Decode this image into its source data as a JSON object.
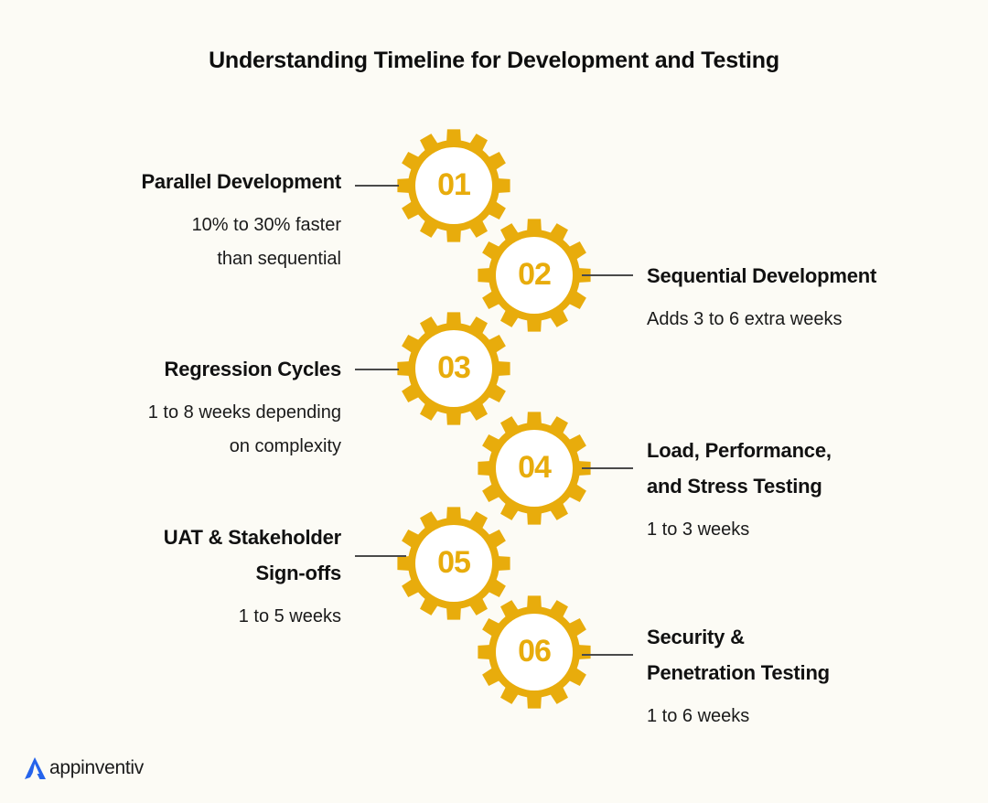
{
  "title": "Understanding Timeline for Development and Testing",
  "colors": {
    "gear": "#e8ac0c",
    "gear_inner": "#ffffff",
    "background": "#fcfbf5",
    "connector": "#4a4a4a",
    "logo_accent": "#2563eb"
  },
  "steps": [
    {
      "number": "01",
      "side": "left",
      "title": "Parallel Development",
      "desc": "10% to 30% faster\nthan sequential"
    },
    {
      "number": "02",
      "side": "right",
      "title": "Sequential Development",
      "desc": "Adds 3 to 6 extra weeks"
    },
    {
      "number": "03",
      "side": "left",
      "title": "Regression Cycles",
      "desc": "1 to 8 weeks depending\non complexity"
    },
    {
      "number": "04",
      "side": "right",
      "title": "Load, Performance,\nand Stress Testing",
      "desc": "1 to 3 weeks"
    },
    {
      "number": "05",
      "side": "left",
      "title": "UAT & Stakeholder\nSign-offs",
      "desc": "1 to 5 weeks"
    },
    {
      "number": "06",
      "side": "right",
      "title": "Security &\nPenetration Testing",
      "desc": "1 to 6 weeks"
    }
  ],
  "logo": {
    "icon": "appinventiv-a-icon",
    "text": "appinventiv"
  }
}
